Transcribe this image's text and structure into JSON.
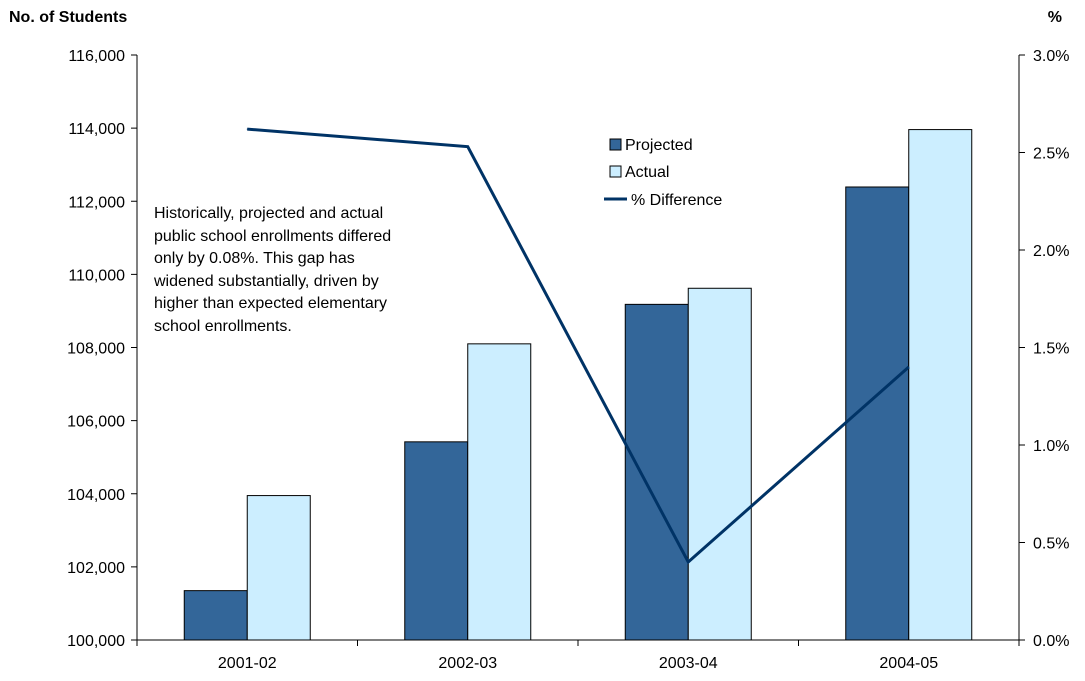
{
  "chart_data": {
    "type": "bar",
    "title": "",
    "categories": [
      "2001-02",
      "2002-03",
      "2003-04",
      "2004-05"
    ],
    "series": [
      {
        "name": "Projected",
        "type": "bar",
        "axis": "left",
        "color": "#336699",
        "values": [
          101350,
          105420,
          109180,
          112390
        ]
      },
      {
        "name": "Actual",
        "type": "bar",
        "axis": "left",
        "color": "#cceeff",
        "values": [
          103950,
          108100,
          109620,
          113960
        ]
      },
      {
        "name": "% Difference",
        "type": "line",
        "axis": "right",
        "color": "#003366",
        "values": [
          2.62,
          2.53,
          0.4,
          1.4
        ]
      }
    ],
    "ylabel_left": "No. of Students",
    "ylabel_right": "%",
    "ylim_left": [
      100000,
      116000
    ],
    "ylim_right": [
      0,
      3.0
    ],
    "yticks_left": [
      "100,000",
      "102,000",
      "104,000",
      "106,000",
      "108,000",
      "110,000",
      "112,000",
      "114,000",
      "116,000"
    ],
    "yticks_right": [
      "0.0%",
      "0.5%",
      "1.0%",
      "1.5%",
      "2.0%",
      "2.5%",
      "3.0%"
    ],
    "grid": false,
    "legend_position": "top-center",
    "legend": [
      "Projected",
      "Actual",
      "% Difference"
    ],
    "annotation_lines": [
      "Historically, projected and actual",
      "public school enrollments differed",
      "only by 0.08%.  This gap has",
      "widened substantially, driven by",
      "higher than expected elementary",
      "school enrollments."
    ]
  }
}
